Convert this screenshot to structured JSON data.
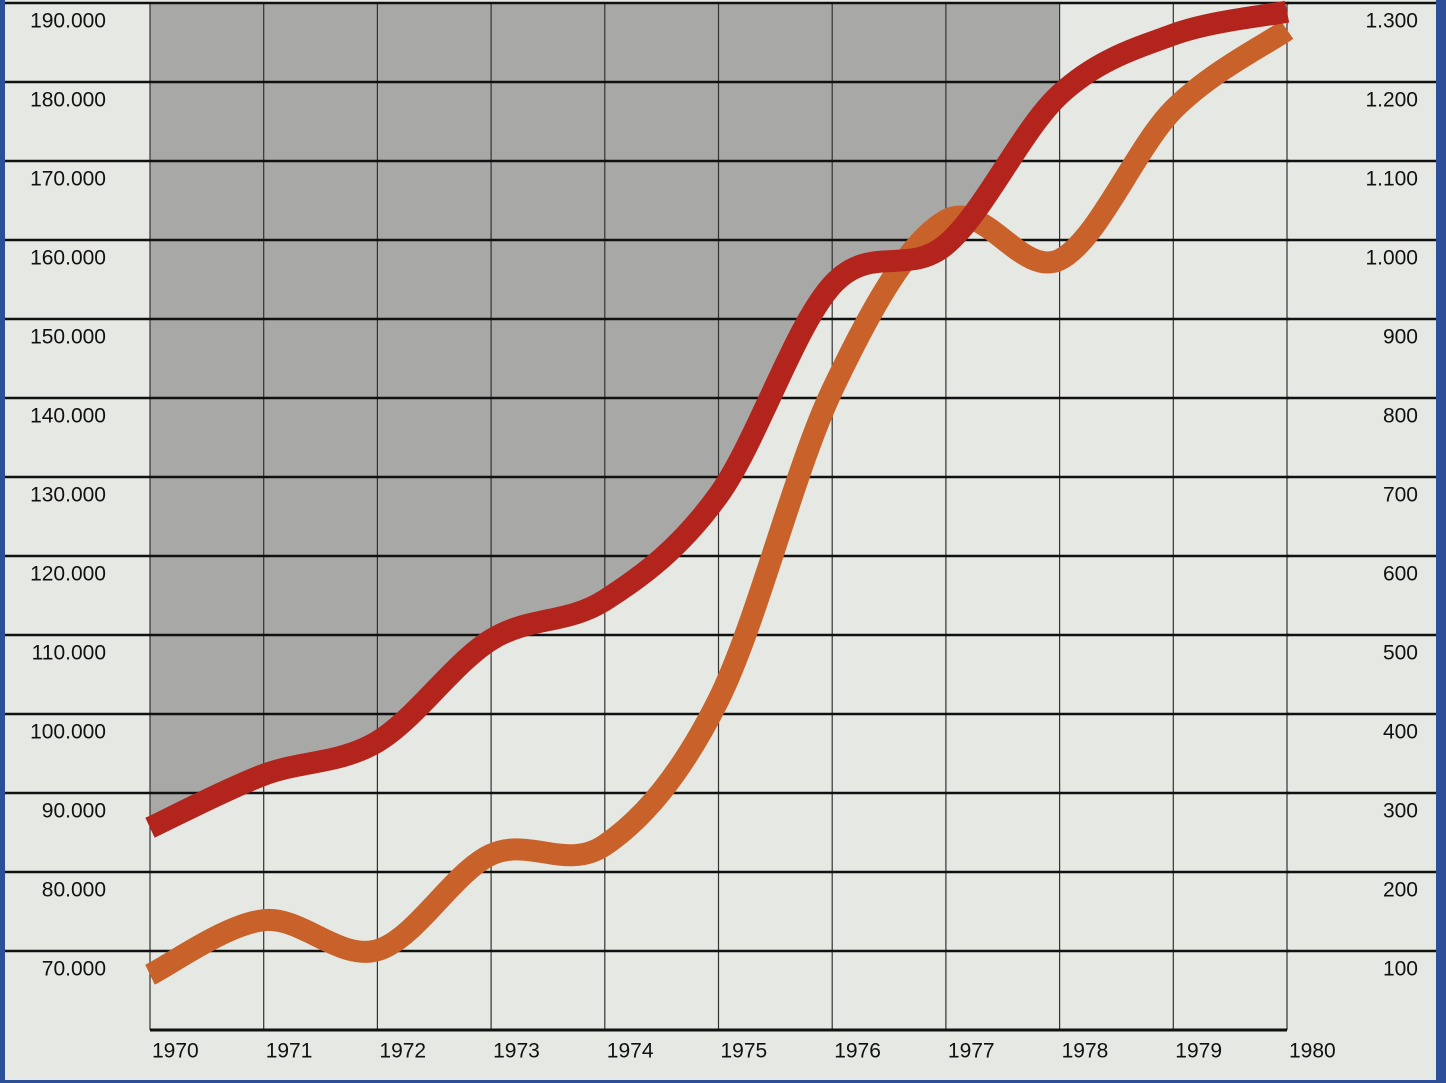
{
  "chart_data": {
    "type": "line",
    "x": [
      1970,
      1971,
      1972,
      1973,
      1974,
      1975,
      1976,
      1977,
      1978,
      1979,
      1980
    ],
    "xlim": [
      1970,
      1980
    ],
    "xticks": [
      1970,
      1971,
      1972,
      1973,
      1974,
      1975,
      1976,
      1977,
      1978,
      1979,
      1980
    ],
    "ylim": [
      60000,
      190000
    ],
    "yticks": [
      {
        "value": 70000,
        "label": "70.000"
      },
      {
        "value": 80000,
        "label": "80.000"
      },
      {
        "value": 90000,
        "label": "90.000"
      },
      {
        "value": 100000,
        "label": "100.000"
      },
      {
        "value": 110000,
        "label": "110.000"
      },
      {
        "value": 120000,
        "label": "120.000"
      },
      {
        "value": 130000,
        "label": "130.000"
      },
      {
        "value": 140000,
        "label": "140.000"
      },
      {
        "value": 150000,
        "label": "150.000"
      },
      {
        "value": 160000,
        "label": "160.000"
      },
      {
        "value": 170000,
        "label": "170.000"
      },
      {
        "value": 180000,
        "label": "180.000"
      },
      {
        "value": 190000,
        "label": "190.000"
      }
    ],
    "y2lim": [
      0,
      1300
    ],
    "y2ticks": [
      100,
      200,
      300,
      400,
      500,
      600,
      700,
      800,
      900,
      {
        "value": 1000,
        "label": "1.000"
      },
      {
        "value": 1100,
        "label": "1.100"
      },
      {
        "value": 1200,
        "label": "1.200"
      },
      {
        "value": 1300,
        "label": "1.300"
      }
    ],
    "grid": true,
    "series": [
      {
        "color": "#b3241d",
        "values": [
          85600,
          92300,
          96500,
          109400,
          114400,
          127700,
          154300,
          159400,
          178400,
          186000,
          188900
        ]
      },
      {
        "color": "#c9622a",
        "axis": "y2",
        "values": [
          70,
          139,
          101,
          222,
          234,
          418,
          810,
          1025,
          975,
          1165,
          1266
        ]
      }
    ]
  }
}
